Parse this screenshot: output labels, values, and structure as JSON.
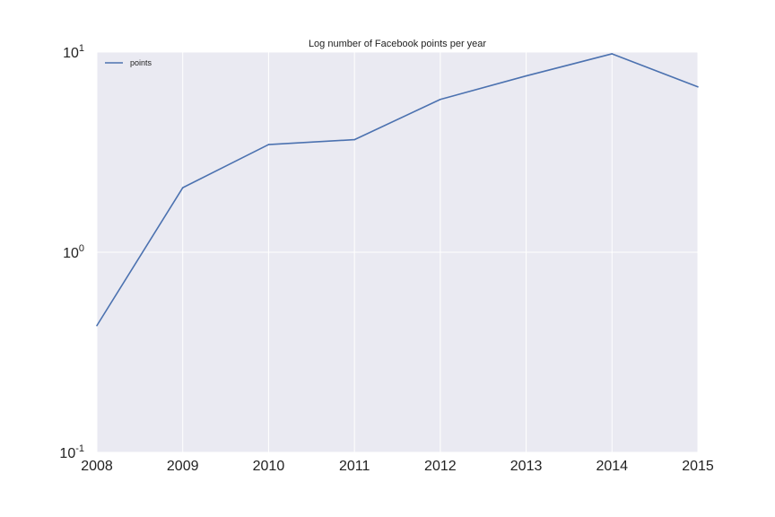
{
  "chart_data": {
    "type": "line",
    "title": "Log number of Facebook points per year",
    "xlabel": "",
    "ylabel": "",
    "yscale": "log",
    "ylim": [
      0.1,
      10
    ],
    "xlim": [
      2008,
      2015
    ],
    "x": [
      2008,
      2009,
      2010,
      2011,
      2012,
      2013,
      2014,
      2015
    ],
    "x_tick_labels": [
      "2008",
      "2009",
      "2010",
      "2011",
      "2012",
      "2013",
      "2014",
      "2015"
    ],
    "y_ticks": [
      {
        "base": "10",
        "exp": "-1",
        "value": 0.1
      },
      {
        "base": "10",
        "exp": "0",
        "value": 1
      },
      {
        "base": "10",
        "exp": "1",
        "value": 10
      }
    ],
    "series": [
      {
        "name": "points",
        "values": [
          0.43,
          2.1,
          3.45,
          3.65,
          5.8,
          7.6,
          9.8,
          6.7
        ],
        "color": "#4c72b0"
      }
    ],
    "grid": true,
    "legend_position": "top-left",
    "background_color": "#eaeaf2",
    "grid_color": "#ffffff"
  }
}
